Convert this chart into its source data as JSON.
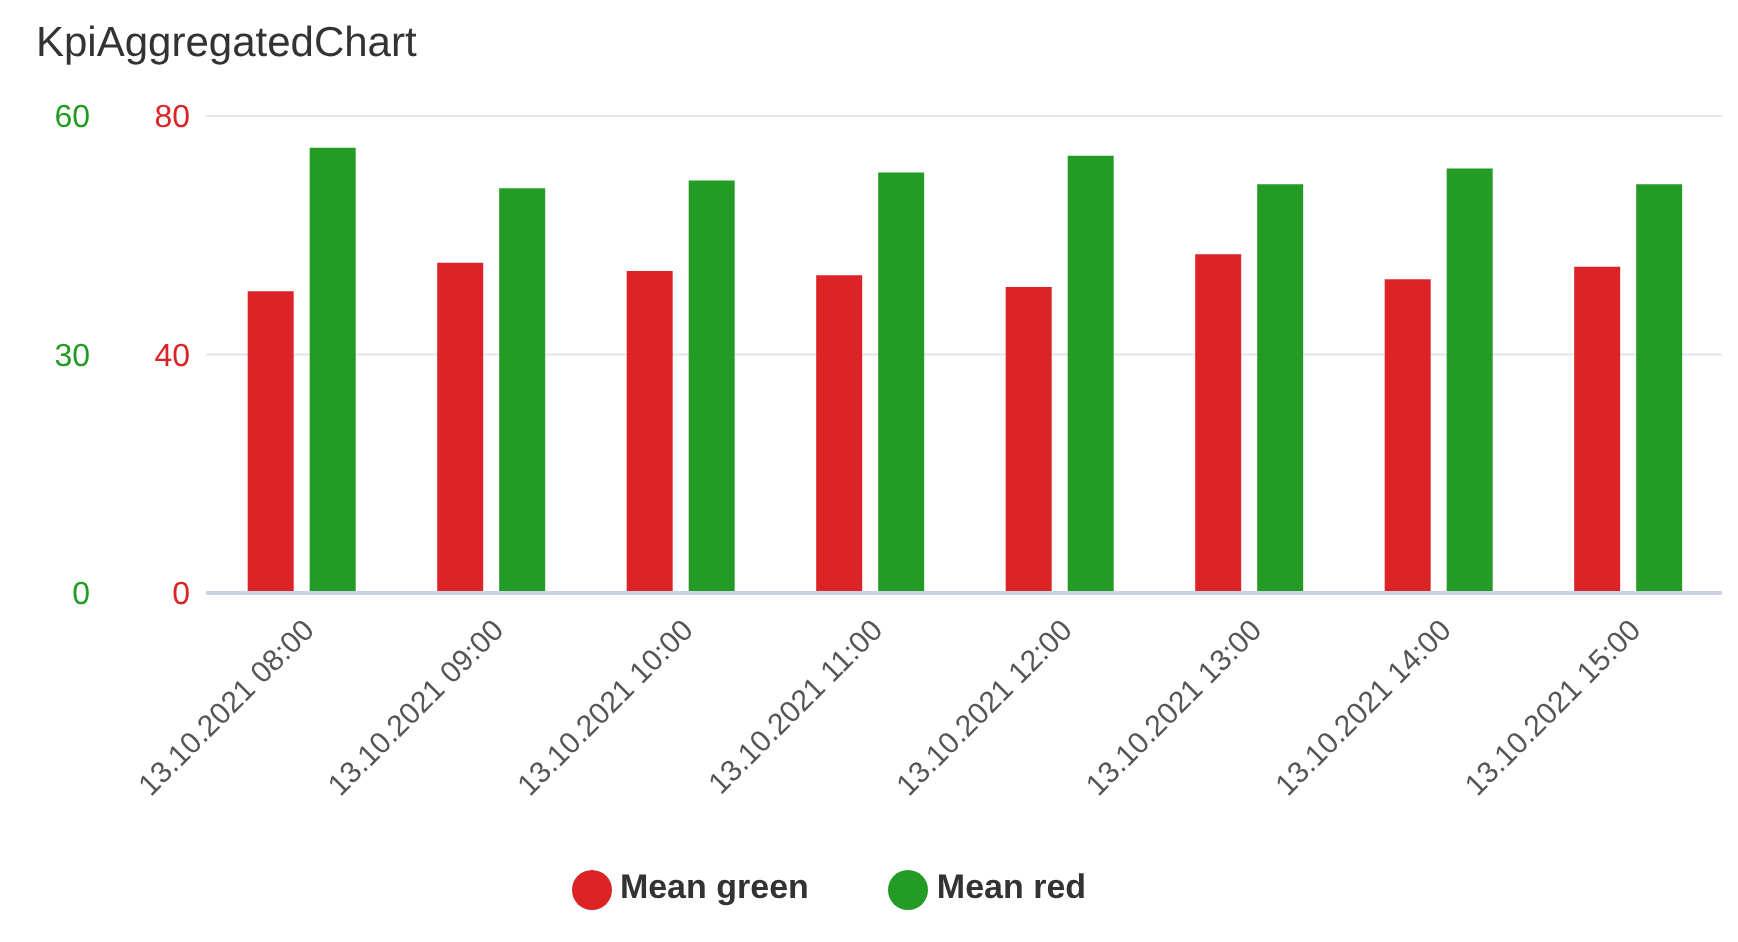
{
  "chart_data": {
    "type": "bar",
    "title": "KpiAggregatedChart",
    "categories": [
      "13.10.2021 08:00",
      "13.10.2021 09:00",
      "13.10.2021 10:00",
      "13.10.2021 11:00",
      "13.10.2021 12:00",
      "13.10.2021 13:00",
      "13.10.2021 14:00",
      "13.10.2021 15:00"
    ],
    "series": [
      {
        "name": "Mean green",
        "color": "#dc2326",
        "values": [
          50.6,
          55.4,
          54.0,
          53.3,
          51.3,
          56.8,
          52.6,
          54.7
        ]
      },
      {
        "name": "Mean red",
        "color": "#239b25",
        "axis": "y2",
        "values": [
          56.0,
          50.9,
          51.9,
          52.9,
          55.0,
          51.4,
          53.4,
          51.4
        ]
      }
    ],
    "ylim": [
      0,
      80
    ],
    "yticks": [
      0,
      40,
      80
    ],
    "y2lim": [
      0,
      60
    ],
    "y2ticks": [
      0,
      30,
      60
    ],
    "grid": "y",
    "legend": "bottom"
  }
}
